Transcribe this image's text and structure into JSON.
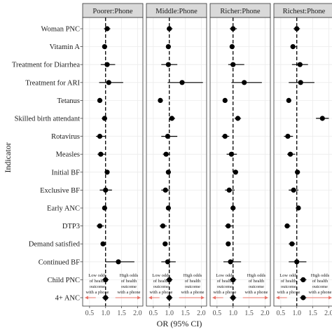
{
  "chart_data": {
    "type": "forest",
    "xlabel": "OR (95% CI)",
    "ylabel": "Indicator",
    "reference_line": 1.0,
    "xlim": [
      0.35,
      2.1
    ],
    "xticks": [
      0.5,
      1.0,
      1.5,
      2.0
    ],
    "xtick_labels": [
      "0.5",
      "1.0",
      "1.5",
      "2.0"
    ],
    "indicators": [
      "Woman PNC",
      "Vitamin A",
      "Treatment for Diarrhea",
      "Treatment for ARI",
      "Tetanus",
      "Skilled birth attendant",
      "Rotavirus",
      "Measles",
      "Initial BF",
      "Exclusive BF",
      "Early ANC",
      "DTP3",
      "Demand satisfied",
      "Continued BF",
      "Child PNC",
      "4+ ANC"
    ],
    "annotations": {
      "low_odds": "Low odds of health outcome with a phone",
      "high_odds": "High odds of health outcome with a phone",
      "low_odds_lines": [
        "Low odds",
        "of health",
        "outcome",
        "with a phone"
      ],
      "high_odds_lines": [
        "High odds",
        "of health",
        "outcome",
        "with a phone"
      ]
    },
    "colors": {
      "point": "#000000",
      "arrow": "#e8736a",
      "strip_bg": "#d9d9d9",
      "panel_border": "#333333"
    },
    "grid": true,
    "panels": [
      {
        "name": "Poorer:Phone",
        "or": [
          1.05,
          0.97,
          1.05,
          1.1,
          0.82,
          0.97,
          0.82,
          0.85,
          1.05,
          1.0,
          0.97,
          0.82,
          0.92,
          1.4,
          1.0,
          1.0
        ],
        "low": [
          0.95,
          0.9,
          0.85,
          0.8,
          0.75,
          0.88,
          0.7,
          0.75,
          0.98,
          0.82,
          0.9,
          0.72,
          0.85,
          1.0,
          0.9,
          0.9
        ],
        "high": [
          1.15,
          1.05,
          1.3,
          1.55,
          0.9,
          1.05,
          1.0,
          1.0,
          1.12,
          1.2,
          1.05,
          0.95,
          1.0,
          1.9,
          1.1,
          1.1
        ]
      },
      {
        "name": "Middle:Phone",
        "or": [
          1.0,
          0.97,
          0.97,
          1.4,
          0.72,
          1.08,
          0.95,
          0.9,
          0.97,
          0.88,
          0.97,
          0.8,
          0.87,
          0.95,
          1.0,
          1.0
        ],
        "low": [
          0.92,
          0.9,
          0.75,
          0.95,
          0.65,
          1.0,
          0.75,
          0.8,
          0.9,
          0.75,
          0.9,
          0.7,
          0.8,
          0.75,
          0.9,
          0.9
        ],
        "high": [
          1.1,
          1.05,
          1.25,
          2.05,
          0.8,
          1.18,
          1.25,
          1.02,
          1.05,
          1.02,
          1.05,
          0.92,
          0.95,
          1.2,
          1.1,
          1.1
        ]
      },
      {
        "name": "Richer:Phone",
        "or": [
          1.0,
          0.97,
          1.0,
          1.35,
          0.75,
          1.15,
          0.75,
          0.95,
          1.08,
          0.88,
          1.0,
          0.85,
          0.85,
          0.92,
          1.0,
          1.0
        ],
        "low": [
          0.9,
          0.9,
          0.85,
          0.95,
          0.68,
          1.05,
          0.65,
          0.8,
          1.0,
          0.75,
          0.92,
          0.75,
          0.78,
          0.7,
          0.9,
          0.9
        ],
        "high": [
          1.12,
          1.05,
          1.35,
          1.9,
          0.82,
          1.25,
          0.88,
          1.12,
          1.15,
          1.05,
          1.08,
          0.98,
          0.92,
          1.25,
          1.1,
          1.1
        ]
      },
      {
        "name": "Richest:Phone",
        "or": [
          1.0,
          0.88,
          1.1,
          1.12,
          0.75,
          1.8,
          0.72,
          0.8,
          1.02,
          0.9,
          1.05,
          0.7,
          0.85,
          1.0,
          1.2,
          1.2
        ],
        "low": [
          0.9,
          0.8,
          0.85,
          0.75,
          0.68,
          1.6,
          0.6,
          0.7,
          0.95,
          0.75,
          0.98,
          0.62,
          0.75,
          0.75,
          1.1,
          1.1
        ],
        "high": [
          1.1,
          0.98,
          1.35,
          1.55,
          0.82,
          2.0,
          0.88,
          0.95,
          1.1,
          1.05,
          1.12,
          0.8,
          0.95,
          1.3,
          1.3,
          1.3
        ]
      }
    ]
  }
}
